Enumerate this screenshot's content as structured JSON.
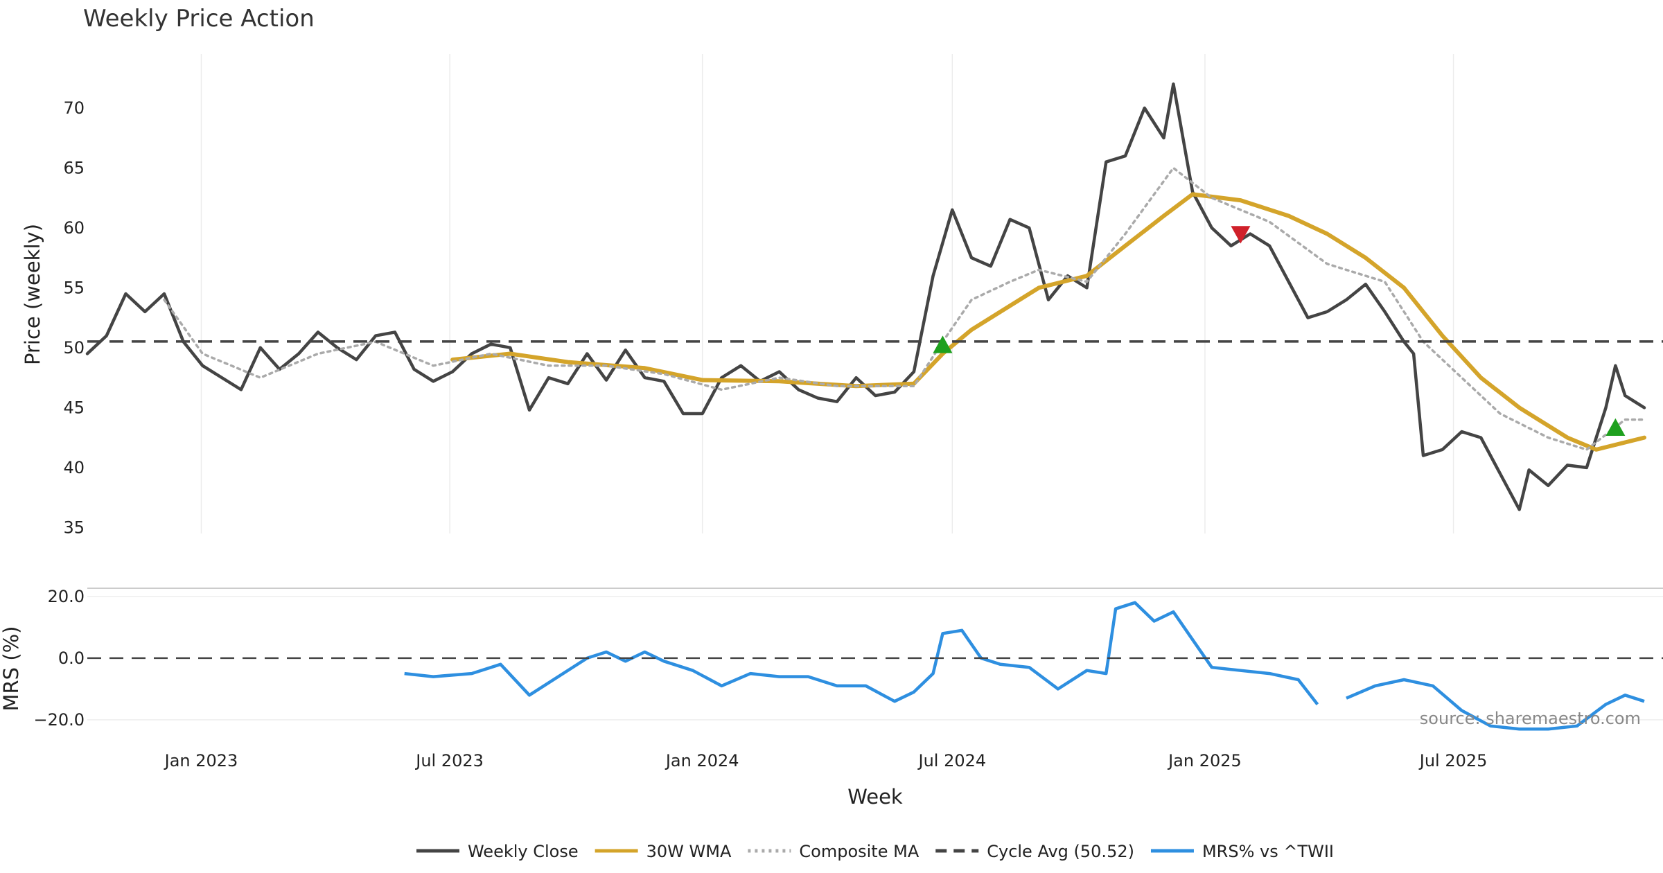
{
  "chart_data": [
    {
      "type": "line",
      "title": "Weekly Price Action",
      "xlabel": "",
      "ylabel": "Price (weekly)",
      "ylim": [
        34.5,
        74.5
      ],
      "yticks": [
        35,
        40,
        45,
        50,
        55,
        60,
        65,
        70
      ],
      "x_range": [
        "2022-10-10",
        "2025-11-17"
      ],
      "grid": "vertical",
      "series": [
        {
          "name": "Weekly Close",
          "color": "#444444",
          "style": "solid",
          "points": [
            [
              "2022-10-10",
              49.5
            ],
            [
              "2022-10-24",
              51.0
            ],
            [
              "2022-11-07",
              54.5
            ],
            [
              "2022-11-21",
              53.0
            ],
            [
              "2022-12-05",
              54.5
            ],
            [
              "2022-12-19",
              50.5
            ],
            [
              "2023-01-02",
              48.5
            ],
            [
              "2023-01-16",
              47.5
            ],
            [
              "2023-01-30",
              46.5
            ],
            [
              "2023-02-13",
              50.0
            ],
            [
              "2023-02-27",
              48.2
            ],
            [
              "2023-03-13",
              49.5
            ],
            [
              "2023-03-27",
              51.3
            ],
            [
              "2023-04-10",
              50.0
            ],
            [
              "2023-04-24",
              49.0
            ],
            [
              "2023-05-08",
              51.0
            ],
            [
              "2023-05-22",
              51.3
            ],
            [
              "2023-06-05",
              48.2
            ],
            [
              "2023-06-19",
              47.2
            ],
            [
              "2023-07-03",
              48.0
            ],
            [
              "2023-07-17",
              49.5
            ],
            [
              "2023-07-31",
              50.3
            ],
            [
              "2023-08-14",
              50.0
            ],
            [
              "2023-08-28",
              44.8
            ],
            [
              "2023-09-11",
              47.5
            ],
            [
              "2023-09-25",
              47.0
            ],
            [
              "2023-10-09",
              49.5
            ],
            [
              "2023-10-23",
              47.3
            ],
            [
              "2023-11-06",
              49.8
            ],
            [
              "2023-11-20",
              47.5
            ],
            [
              "2023-12-04",
              47.2
            ],
            [
              "2023-12-18",
              44.5
            ],
            [
              "2024-01-01",
              44.5
            ],
            [
              "2024-01-15",
              47.5
            ],
            [
              "2024-01-29",
              48.5
            ],
            [
              "2024-02-12",
              47.2
            ],
            [
              "2024-02-26",
              48.0
            ],
            [
              "2024-03-11",
              46.5
            ],
            [
              "2024-03-25",
              45.8
            ],
            [
              "2024-04-08",
              45.5
            ],
            [
              "2024-04-22",
              47.5
            ],
            [
              "2024-05-06",
              46.0
            ],
            [
              "2024-05-20",
              46.3
            ],
            [
              "2024-06-03",
              48.0
            ],
            [
              "2024-06-17",
              56.0
            ],
            [
              "2024-07-01",
              61.5
            ],
            [
              "2024-07-15",
              57.5
            ],
            [
              "2024-07-29",
              56.8
            ],
            [
              "2024-08-12",
              60.7
            ],
            [
              "2024-08-26",
              60.0
            ],
            [
              "2024-09-09",
              54.0
            ],
            [
              "2024-09-23",
              56.0
            ],
            [
              "2024-10-07",
              55.0
            ],
            [
              "2024-10-21",
              65.5
            ],
            [
              "2024-11-04",
              66.0
            ],
            [
              "2024-11-18",
              70.0
            ],
            [
              "2024-12-02",
              67.5
            ],
            [
              "2024-12-09",
              72.0
            ],
            [
              "2024-12-23",
              63.0
            ],
            [
              "2025-01-06",
              60.0
            ],
            [
              "2025-01-20",
              58.5
            ],
            [
              "2025-02-03",
              59.5
            ],
            [
              "2025-02-17",
              58.5
            ],
            [
              "2025-03-03",
              55.5
            ],
            [
              "2025-03-17",
              52.5
            ],
            [
              "2025-03-31",
              53.0
            ],
            [
              "2025-04-14",
              54.0
            ],
            [
              "2025-04-28",
              55.3
            ],
            [
              "2025-05-12",
              53.0
            ],
            [
              "2025-05-26",
              50.5
            ],
            [
              "2025-06-02",
              49.5
            ],
            [
              "2025-06-09",
              41.0
            ],
            [
              "2025-06-23",
              41.5
            ],
            [
              "2025-07-07",
              43.0
            ],
            [
              "2025-07-21",
              42.5
            ],
            [
              "2025-08-04",
              39.5
            ],
            [
              "2025-08-18",
              36.5
            ],
            [
              "2025-08-25",
              39.8
            ],
            [
              "2025-09-08",
              38.5
            ],
            [
              "2025-09-22",
              40.2
            ],
            [
              "2025-10-06",
              40.0
            ],
            [
              "2025-10-20",
              45.0
            ],
            [
              "2025-10-27",
              48.5
            ],
            [
              "2025-11-03",
              46.0
            ],
            [
              "2025-11-10",
              45.5
            ],
            [
              "2025-11-17",
              45.0
            ]
          ]
        },
        {
          "name": "30W WMA",
          "color": "#D4A42A",
          "style": "solid",
          "points": [
            [
              "2023-07-03",
              49.0
            ],
            [
              "2023-08-14",
              49.5
            ],
            [
              "2023-09-25",
              48.8
            ],
            [
              "2023-11-20",
              48.3
            ],
            [
              "2024-01-01",
              47.3
            ],
            [
              "2024-02-26",
              47.2
            ],
            [
              "2024-04-22",
              46.8
            ],
            [
              "2024-06-03",
              47.0
            ],
            [
              "2024-06-24",
              49.5
            ],
            [
              "2024-07-15",
              51.5
            ],
            [
              "2024-08-12",
              53.5
            ],
            [
              "2024-09-02",
              55.0
            ],
            [
              "2024-10-07",
              56.0
            ],
            [
              "2024-11-04",
              58.5
            ],
            [
              "2024-12-02",
              61.0
            ],
            [
              "2024-12-23",
              62.8
            ],
            [
              "2025-01-27",
              62.3
            ],
            [
              "2025-03-03",
              61.0
            ],
            [
              "2025-03-31",
              59.5
            ],
            [
              "2025-04-28",
              57.5
            ],
            [
              "2025-05-26",
              55.0
            ],
            [
              "2025-06-23",
              51.0
            ],
            [
              "2025-07-21",
              47.5
            ],
            [
              "2025-08-18",
              45.0
            ],
            [
              "2025-09-22",
              42.5
            ],
            [
              "2025-10-13",
              41.5
            ],
            [
              "2025-11-17",
              42.5
            ]
          ]
        },
        {
          "name": "Composite MA",
          "color": "#AAAAAA",
          "style": "dotted",
          "points": [
            [
              "2022-12-05",
              54.0
            ],
            [
              "2023-01-02",
              49.5
            ],
            [
              "2023-02-13",
              47.5
            ],
            [
              "2023-03-27",
              49.5
            ],
            [
              "2023-05-08",
              50.5
            ],
            [
              "2023-06-19",
              48.5
            ],
            [
              "2023-07-31",
              49.5
            ],
            [
              "2023-09-11",
              48.5
            ],
            [
              "2023-10-23",
              48.5
            ],
            [
              "2023-12-04",
              47.8
            ],
            [
              "2024-01-15",
              46.5
            ],
            [
              "2024-02-26",
              47.5
            ],
            [
              "2024-04-08",
              46.8
            ],
            [
              "2024-06-03",
              46.8
            ],
            [
              "2024-06-24",
              50.5
            ],
            [
              "2024-07-15",
              54.0
            ],
            [
              "2024-08-12",
              55.5
            ],
            [
              "2024-09-02",
              56.5
            ],
            [
              "2024-10-07",
              55.5
            ],
            [
              "2024-11-04",
              59.5
            ],
            [
              "2024-12-09",
              65.0
            ],
            [
              "2025-01-06",
              62.5
            ],
            [
              "2025-02-17",
              60.5
            ],
            [
              "2025-03-31",
              57.0
            ],
            [
              "2025-05-12",
              55.5
            ],
            [
              "2025-06-09",
              50.5
            ],
            [
              "2025-07-07",
              47.5
            ],
            [
              "2025-08-04",
              44.5
            ],
            [
              "2025-09-08",
              42.5
            ],
            [
              "2025-10-06",
              41.5
            ],
            [
              "2025-11-03",
              44.0
            ],
            [
              "2025-11-17",
              44.0
            ]
          ]
        },
        {
          "name": "Cycle Avg (50.52)",
          "color": "#444444",
          "style": "dashed",
          "value": 50.52
        }
      ],
      "markers": [
        {
          "type": "buy",
          "symbol": "triangle-up",
          "color": "#1EA01E",
          "date": "2024-06-24",
          "value": 50.2
        },
        {
          "type": "sell",
          "symbol": "triangle-down",
          "color": "#D0202A",
          "date": "2025-01-27",
          "value": 59.5
        },
        {
          "type": "buy",
          "symbol": "triangle-up",
          "color": "#1EA01E",
          "date": "2025-10-27",
          "value": 43.3
        }
      ]
    },
    {
      "type": "line",
      "title": "",
      "xlabel": "Week",
      "ylabel": "MRS (%)",
      "ylim": [
        -27,
        22
      ],
      "yticks": [
        20,
        0,
        -20
      ],
      "ytick_labels": [
        "20.0",
        "0.0",
        "−20.0"
      ],
      "xticks": [
        "2023-01-01",
        "2023-07-01",
        "2024-01-01",
        "2024-07-01",
        "2025-01-01",
        "2025-07-01"
      ],
      "xtick_labels": [
        "Jan 2023",
        "Jul 2023",
        "Jan 2024",
        "Jul 2024",
        "Jan 2025",
        "Jul 2025"
      ],
      "series": [
        {
          "name": "MRS% vs ^TWII",
          "color": "#2E8FE0",
          "style": "solid",
          "segments": [
            [
              [
                "2023-05-29",
                -5
              ],
              [
                "2023-06-19",
                -6
              ],
              [
                "2023-07-17",
                -5
              ],
              [
                "2023-08-07",
                -2
              ],
              [
                "2023-08-28",
                -12
              ],
              [
                "2023-09-18",
                -6
              ],
              [
                "2023-10-09",
                0
              ],
              [
                "2023-10-23",
                2
              ],
              [
                "2023-11-06",
                -1
              ],
              [
                "2023-11-20",
                2
              ],
              [
                "2023-12-04",
                -1
              ],
              [
                "2023-12-25",
                -4
              ],
              [
                "2024-01-15",
                -9
              ],
              [
                "2024-02-05",
                -5
              ],
              [
                "2024-02-26",
                -6
              ],
              [
                "2024-03-18",
                -6
              ],
              [
                "2024-04-08",
                -9
              ],
              [
                "2024-04-29",
                -9
              ],
              [
                "2024-05-20",
                -14
              ],
              [
                "2024-06-03",
                -11
              ],
              [
                "2024-06-17",
                -5
              ],
              [
                "2024-06-24",
                8
              ],
              [
                "2024-07-08",
                9
              ],
              [
                "2024-07-22",
                0
              ],
              [
                "2024-08-05",
                -2
              ],
              [
                "2024-08-26",
                -3
              ],
              [
                "2024-09-16",
                -10
              ],
              [
                "2024-10-07",
                -4
              ],
              [
                "2024-10-21",
                -5
              ],
              [
                "2024-10-28",
                16
              ],
              [
                "2024-11-11",
                18
              ],
              [
                "2024-11-25",
                12
              ],
              [
                "2024-12-09",
                15
              ],
              [
                "2024-12-23",
                6
              ],
              [
                "2025-01-06",
                -3
              ],
              [
                "2025-01-27",
                -4
              ],
              [
                "2025-02-17",
                -5
              ],
              [
                "2025-03-10",
                -7
              ],
              [
                "2025-03-24",
                -15
              ]
            ],
            [
              [
                "2025-04-14",
                -13
              ],
              [
                "2025-05-05",
                -9
              ],
              [
                "2025-05-26",
                -7
              ],
              [
                "2025-06-16",
                -9
              ],
              [
                "2025-07-07",
                -17
              ],
              [
                "2025-07-28",
                -22
              ],
              [
                "2025-08-18",
                -23
              ],
              [
                "2025-09-08",
                -23
              ],
              [
                "2025-09-29",
                -22
              ],
              [
                "2025-10-20",
                -15
              ],
              [
                "2025-11-03",
                -12
              ],
              [
                "2025-11-17",
                -14
              ]
            ]
          ]
        },
        {
          "name": "zero",
          "color": "#444444",
          "style": "dashed",
          "value": 0
        }
      ]
    }
  ],
  "legend": {
    "placement": "bottom-center",
    "entries": [
      {
        "label": "Weekly Close",
        "color": "#444444",
        "style": "solid"
      },
      {
        "label": "30W WMA",
        "color": "#D4A42A",
        "style": "solid"
      },
      {
        "label": "Composite MA",
        "color": "#AAAAAA",
        "style": "dotted"
      },
      {
        "label": "Cycle Avg (50.52)",
        "color": "#444444",
        "style": "dashed"
      },
      {
        "label": "MRS% vs ^TWII",
        "color": "#2E8FE0",
        "style": "solid"
      }
    ]
  },
  "source": "source: sharemaestro.com"
}
